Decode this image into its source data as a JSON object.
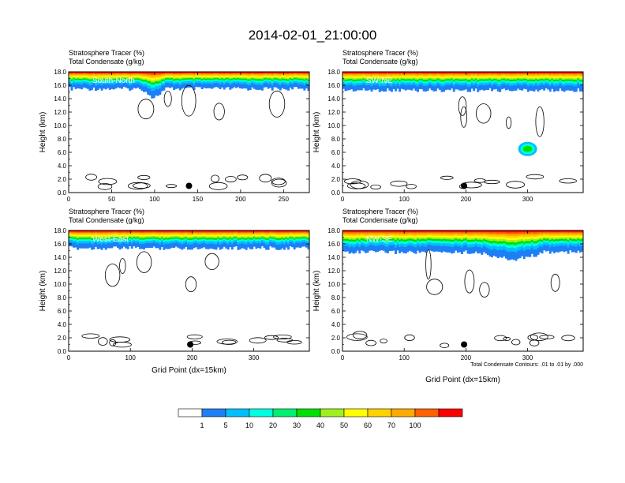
{
  "title": "2014-02-01_21:00:00",
  "labels": {
    "tracer": "Stratosphere Tracer",
    "tracer_unit": "(%)",
    "condensate": "Total Condensate",
    "condensate_unit": "(g/kg)",
    "ylabel": "Height (km)",
    "xlabel": "Grid Point (dx=15km)",
    "contour_note": "Total Condensate Contours: .01 to .01 by .000"
  },
  "colorbar": {
    "levels": [
      "1",
      "5",
      "10",
      "20",
      "30",
      "40",
      "50",
      "60",
      "70",
      "100"
    ],
    "colors": [
      "#ffffff",
      "#1e7ff5",
      "#00bfff",
      "#00ffe0",
      "#00f070",
      "#00e000",
      "#a0f020",
      "#ffff00",
      "#ffd200",
      "#ffaa00",
      "#ff6000",
      "#ff0000"
    ]
  },
  "chart_data": [
    {
      "type": "heatmap",
      "panel": "South-North",
      "xlim": [
        0,
        280
      ],
      "xticks": [
        "0",
        "50",
        "100",
        "150",
        "200",
        "250"
      ],
      "ylim": [
        0,
        18
      ],
      "yticks": [
        "0.0",
        "2.0",
        "4.0",
        "6.0",
        "8.0",
        "10.0",
        "12.0",
        "14.0",
        "16.0",
        "18.0"
      ],
      "tracer_base_km": 15.5,
      "marker": {
        "x": 140,
        "y_km": 1.0
      }
    },
    {
      "type": "heatmap",
      "panel": "SW-NE",
      "xlim": [
        0,
        390
      ],
      "xticks": [
        "0",
        "100",
        "200",
        "300"
      ],
      "ylim": [
        0,
        18
      ],
      "yticks": [
        "0.0",
        "2.0",
        "4.0",
        "6.0",
        "8.0",
        "10.0",
        "12.0",
        "14.0",
        "16.0",
        "18.0"
      ],
      "tracer_base_km": 15.3,
      "marker": {
        "x": 197,
        "y_km": 1.0
      }
    },
    {
      "type": "heatmap",
      "panel": "West-East",
      "xlim": [
        0,
        390
      ],
      "xticks": [
        "0",
        "100",
        "200",
        "300"
      ],
      "ylim": [
        0,
        18
      ],
      "yticks": [
        "0.0",
        "2.0",
        "4.0",
        "6.0",
        "8.0",
        "10.0",
        "12.0",
        "14.0",
        "16.0",
        "18.0"
      ],
      "tracer_base_km": 15.4,
      "marker": {
        "x": 197,
        "y_km": 1.0
      }
    },
    {
      "type": "heatmap",
      "panel": "NW-SE",
      "xlim": [
        0,
        390
      ],
      "xticks": [
        "0",
        "100",
        "200",
        "300"
      ],
      "ylim": [
        0,
        18
      ],
      "yticks": [
        "0.0",
        "2.0",
        "4.0",
        "6.0",
        "8.0",
        "10.0",
        "12.0",
        "14.0",
        "16.0",
        "18.0"
      ],
      "tracer_base_km": 14.8,
      "marker": {
        "x": 197,
        "y_km": 1.0
      }
    }
  ]
}
